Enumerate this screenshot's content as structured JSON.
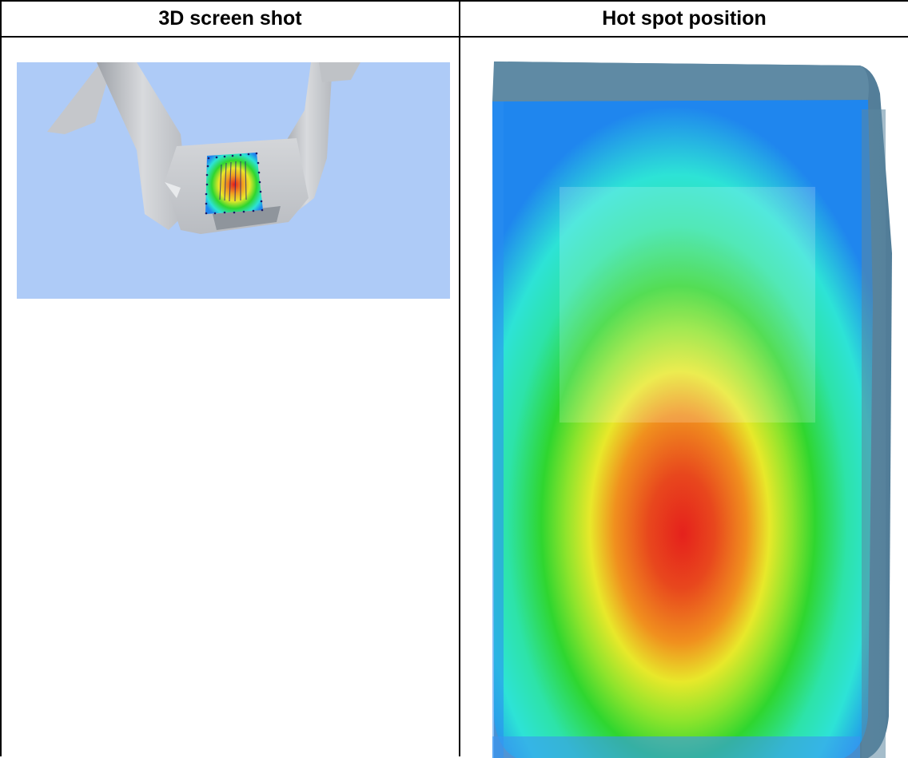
{
  "table": {
    "headers": {
      "left": "3D screen shot",
      "right": "Hot spot position"
    }
  },
  "colors": {
    "background_blue": "#aecbf7",
    "part_grey": "#c8cace",
    "heat_red": "#e5211c",
    "heat_orange": "#f08a1d",
    "heat_yellow": "#e8e82a",
    "heat_green": "#2fd62f",
    "heat_cyan": "#2de3d6",
    "heat_blue": "#1f86ee",
    "housing_slate": "#5e8aa4"
  },
  "images": {
    "left": "3d-model-render",
    "right": "hotspot-heatmap"
  }
}
